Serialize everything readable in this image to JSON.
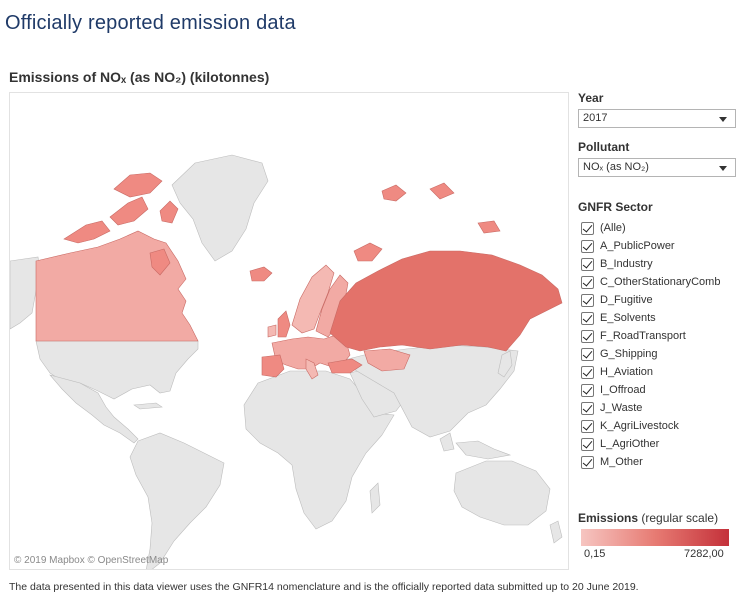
{
  "page": {
    "title": "Officially reported emission data",
    "footnote": "The data presented in this data viewer uses the GNFR14 nomenclature and is the officially reported data submitted up to 20 June 2019."
  },
  "map": {
    "title": "Emissions of NOₓ (as NO₂) (kilotonnes)",
    "attribution": "© 2019 Mapbox © OpenStreetMap",
    "colors": {
      "no_data": "#e6e6e6",
      "border": "#bdbdbd",
      "low": "#f6c5c1",
      "mid": "#ef8a82",
      "high": "#e3726a"
    }
  },
  "filters": {
    "year": {
      "label": "Year",
      "value": "2017"
    },
    "pollutant": {
      "label": "Pollutant",
      "value": "NOₓ (as NO₂)"
    },
    "sector": {
      "label": "GNFR Sector",
      "items": [
        {
          "label": "(Alle)",
          "checked": true
        },
        {
          "label": "A_PublicPower",
          "checked": true
        },
        {
          "label": "B_Industry",
          "checked": true
        },
        {
          "label": "C_OtherStationaryComb",
          "checked": true
        },
        {
          "label": "D_Fugitive",
          "checked": true
        },
        {
          "label": "E_Solvents",
          "checked": true
        },
        {
          "label": "F_RoadTransport",
          "checked": true
        },
        {
          "label": "G_Shipping",
          "checked": true
        },
        {
          "label": "H_Aviation",
          "checked": true
        },
        {
          "label": "I_Offroad",
          "checked": true
        },
        {
          "label": "J_Waste",
          "checked": true
        },
        {
          "label": "K_AgriLivestock",
          "checked": true
        },
        {
          "label": "L_AgriOther",
          "checked": true
        },
        {
          "label": "M_Other",
          "checked": true
        }
      ]
    }
  },
  "legend": {
    "title_bold": "Emissions",
    "title_rest": " (regular scale)",
    "min": "0,15",
    "max": "7282,00"
  }
}
